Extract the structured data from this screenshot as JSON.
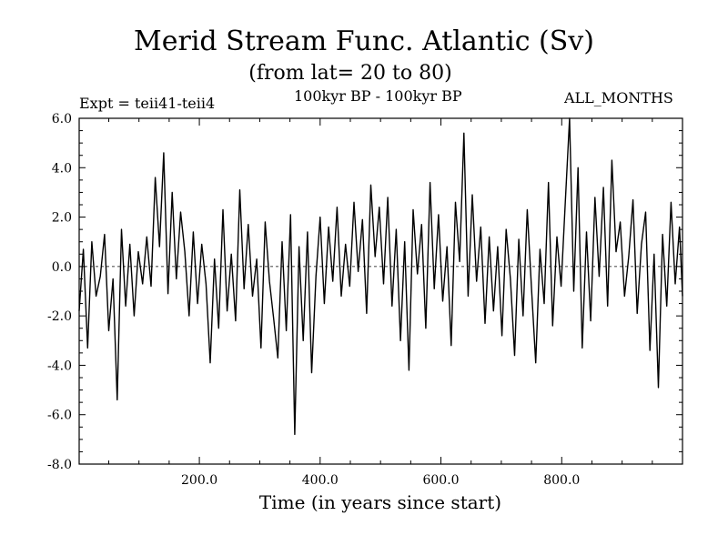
{
  "header": {
    "title": "Merid Stream Func. Atlantic (Sv)",
    "subtitle": "(from lat= 20 to 80)",
    "experiment": "Expt = teii41-teii4",
    "period": "100kyr BP - 100kyr BP",
    "months": "ALL_MONTHS"
  },
  "chart_data": {
    "type": "line",
    "title": "Merid Stream Func. Atlantic (Sv)",
    "subtitle": "(from lat= 20 to 80)",
    "xlabel": "Time (in years since start)",
    "ylabel": "",
    "xlim": [
      1,
      1000
    ],
    "ylim": [
      -8,
      6
    ],
    "x_ticks": [
      200,
      400,
      600,
      800
    ],
    "x_tick_labels": [
      "200.0",
      "400.0",
      "600.0",
      "800.0"
    ],
    "y_ticks": [
      -8,
      -6,
      -4,
      -2,
      0,
      2,
      4,
      6
    ],
    "y_tick_labels": [
      "-8.0",
      "-6.0",
      "-4.0",
      "-2.0",
      "0.0",
      "2.0",
      "4.0",
      "6.0"
    ],
    "zero_line": true,
    "grid": false,
    "series": [
      {
        "color": "#000000",
        "x": [
          1,
          8,
          15,
          22,
          29,
          36,
          43,
          50,
          57,
          64,
          71,
          78,
          85,
          92,
          99,
          106,
          113,
          120,
          127,
          134,
          141,
          148,
          155,
          162,
          169,
          176,
          183,
          190,
          197,
          204,
          211,
          218,
          225,
          232,
          239,
          246,
          253,
          260,
          267,
          274,
          281,
          288,
          295,
          302,
          309,
          316,
          323,
          330,
          337,
          344,
          351,
          358,
          365,
          372,
          379,
          386,
          393,
          400,
          407,
          414,
          421,
          428,
          435,
          442,
          449,
          456,
          463,
          470,
          477,
          484,
          491,
          498,
          505,
          512,
          519,
          526,
          533,
          540,
          547,
          554,
          561,
          568,
          575,
          582,
          589,
          596,
          603,
          610,
          617,
          624,
          631,
          638,
          645,
          652,
          659,
          666,
          673,
          680,
          687,
          694,
          701,
          708,
          715,
          722,
          729,
          736,
          743,
          750,
          757,
          764,
          771,
          778,
          785,
          792,
          799,
          806,
          813,
          820,
          827,
          834,
          841,
          848,
          855,
          862,
          869,
          876,
          883,
          890,
          897,
          904,
          911,
          918,
          925,
          932,
          939,
          946,
          953,
          960,
          967,
          974,
          981,
          988,
          995,
          1000
        ],
        "values": [
          -1.8,
          0.7,
          -3.3,
          1.0,
          -1.2,
          -0.4,
          1.3,
          -2.6,
          -0.5,
          -5.4,
          1.5,
          -1.6,
          0.9,
          -2.0,
          0.6,
          -0.7,
          1.2,
          -0.8,
          3.6,
          0.8,
          4.6,
          -1.1,
          3.0,
          -0.5,
          2.2,
          0.6,
          -2.0,
          1.4,
          -1.5,
          0.9,
          -0.7,
          -3.9,
          0.3,
          -2.5,
          2.3,
          -1.8,
          0.5,
          -2.2,
          3.1,
          -0.9,
          1.7,
          -1.2,
          0.3,
          -3.3,
          1.8,
          -0.6,
          -2.1,
          -3.7,
          1.0,
          -2.6,
          2.1,
          -6.8,
          0.8,
          -3.0,
          1.4,
          -4.3,
          -0.4,
          2.0,
          -1.5,
          1.6,
          -0.6,
          2.4,
          -1.2,
          0.9,
          -0.8,
          2.6,
          -0.2,
          1.9,
          -1.9,
          3.3,
          0.4,
          2.4,
          -0.7,
          2.8,
          -1.6,
          1.5,
          -3.0,
          1.0,
          -4.2,
          2.3,
          -0.3,
          1.7,
          -2.5,
          3.4,
          -0.9,
          2.1,
          -1.4,
          0.8,
          -3.2,
          2.6,
          0.2,
          5.4,
          -1.2,
          2.9,
          -0.6,
          1.6,
          -2.3,
          1.2,
          -1.8,
          0.8,
          -2.8,
          1.5,
          -0.5,
          -3.6,
          1.1,
          -2.0,
          2.3,
          -0.9,
          -3.9,
          0.7,
          -1.5,
          3.4,
          -2.4,
          1.2,
          -0.8,
          2.6,
          6.0,
          -1.0,
          4.0,
          -3.3,
          1.4,
          -2.2,
          2.8,
          -0.4,
          3.2,
          -1.6,
          4.3,
          0.6,
          1.8,
          -1.2,
          0.4,
          2.7,
          -1.9,
          0.9,
          2.2,
          -3.4,
          0.5,
          -4.9,
          1.3,
          -1.6,
          2.6,
          -0.7,
          1.6,
          -1.2
        ]
      }
    ]
  }
}
